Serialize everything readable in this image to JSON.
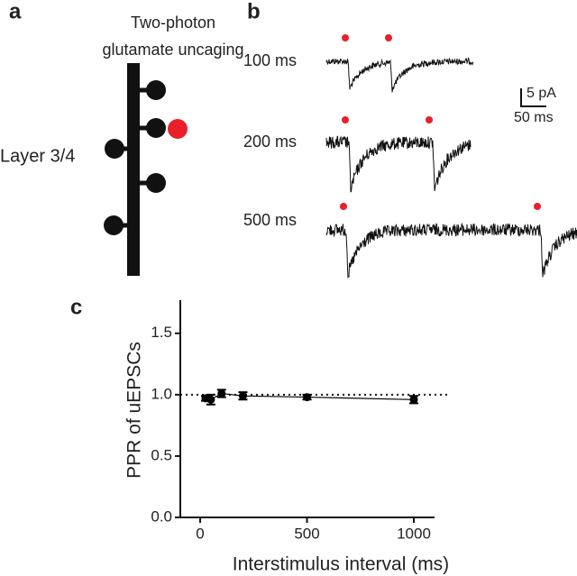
{
  "panel_labels": [
    "a",
    "b",
    "c"
  ],
  "panel_a": {
    "title_lines": [
      "Two-photon",
      "glutamate uncaging"
    ],
    "label": "Layer 3/4"
  },
  "panel_b": {
    "traces": [
      "100 ms",
      "200 ms",
      "500 ms"
    ],
    "scale_bar": {
      "y": "5 pA",
      "x": "50 ms"
    }
  },
  "chart_data": {
    "type": "scatter",
    "x_label": "Interstimulus interval (ms)",
    "y_label": "PPR of uEPSCs",
    "x": [
      25,
      50,
      100,
      200,
      500,
      1000
    ],
    "series": [
      {
        "color": "#000000",
        "values": [
          0.97,
          0.96,
          1.01,
          0.99,
          0.98,
          0.96
        ],
        "errors": [
          0.02,
          0.04,
          0.03,
          0.03,
          0.02,
          0.03
        ]
      }
    ],
    "xlim": [
      -93,
      1097
    ],
    "xticks": [
      0,
      500,
      1000
    ],
    "ylim": [
      0,
      1.77
    ],
    "yticks": [
      {
        "value": 0,
        "label": "0.0"
      },
      {
        "value": 0.5,
        "label": "0.5"
      },
      {
        "value": 1,
        "label": "1.0"
      },
      {
        "value": 1.5,
        "label": "1.5"
      }
    ],
    "reference_line": 1
  }
}
